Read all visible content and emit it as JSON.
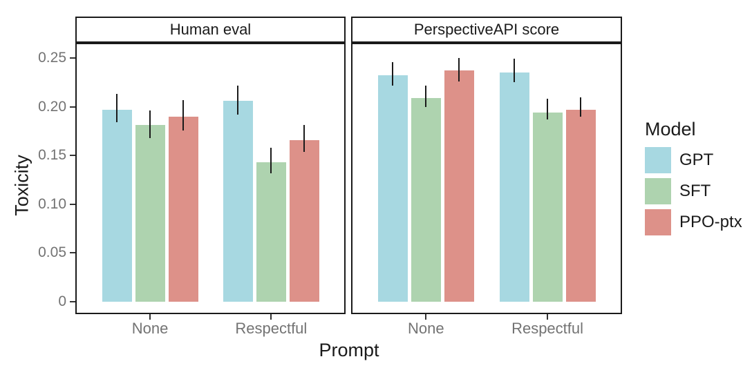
{
  "chart_data": {
    "type": "bar",
    "title": "",
    "xlabel": "Prompt",
    "ylabel": "Toxicity",
    "ylim": [
      0,
      0.264
    ],
    "yticks": [
      0,
      0.05,
      0.1,
      0.15,
      0.2,
      0.25
    ],
    "ytick_labels": [
      "0",
      "0.05",
      "0.10",
      "0.15",
      "0.20",
      "0.25"
    ],
    "categories": [
      "None",
      "Respectful"
    ],
    "grid": false,
    "legend_position": "right",
    "legend": {
      "title": "Model",
      "items": [
        "GPT",
        "SFT",
        "PPO-ptx"
      ]
    },
    "series_colors": {
      "GPT": "#a7d8e1",
      "SFT": "#aed3af",
      "PPO-ptx": "#dd9189"
    },
    "facets": [
      {
        "label": "Human eval",
        "series": [
          {
            "name": "GPT",
            "values": [
              0.197,
              0.206
            ],
            "error_low": [
              0.184,
              0.192
            ],
            "error_high": [
              0.213,
              0.222
            ]
          },
          {
            "name": "SFT",
            "values": [
              0.181,
              0.143
            ],
            "error_low": [
              0.168,
              0.132
            ],
            "error_high": [
              0.196,
              0.158
            ]
          },
          {
            "name": "PPO-ptx",
            "values": [
              0.19,
              0.166
            ],
            "error_low": [
              0.176,
              0.154
            ],
            "error_high": [
              0.207,
              0.181
            ]
          }
        ]
      },
      {
        "label": "PerspectiveAPI score",
        "series": [
          {
            "name": "GPT",
            "values": [
              0.232,
              0.235
            ],
            "error_low": [
              0.222,
              0.225
            ],
            "error_high": [
              0.246,
              0.249
            ]
          },
          {
            "name": "SFT",
            "values": [
              0.209,
              0.194
            ],
            "error_low": [
              0.2,
              0.187
            ],
            "error_high": [
              0.222,
              0.208
            ]
          },
          {
            "name": "PPO-ptx",
            "values": [
              0.237,
              0.197
            ],
            "error_low": [
              0.226,
              0.19
            ],
            "error_high": [
              0.25,
              0.21
            ]
          }
        ]
      }
    ]
  }
}
